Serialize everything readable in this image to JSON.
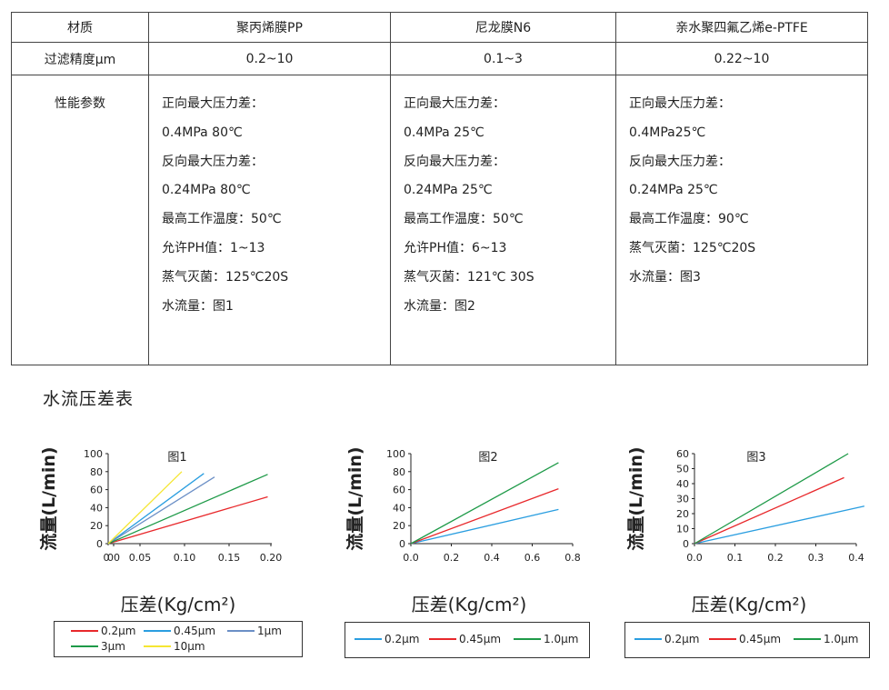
{
  "table": {
    "header": [
      "材质",
      "聚丙烯膜PP",
      "尼龙膜N6",
      "亲水聚四氟乙烯e-PTFE"
    ],
    "precision": [
      "过滤精度µm",
      "0.2~10",
      "0.1~3",
      "0.22~10"
    ],
    "perf_label": "性能参数",
    "perf": [
      [
        "正向最大压力差：",
        "0.4MPa 80℃",
        "反向最大压力差：",
        "0.24MPa 80℃",
        "最高工作温度：50℃",
        "允许PH值：1~13",
        "蒸气灭菌：125℃20S",
        "水流量：图1"
      ],
      [
        "正向最大压力差：",
        "0.4MPa 25℃",
        "反向最大压力差：",
        "0.24MPa 25℃",
        "最高工作温度：50℃",
        "允许PH值：6~13",
        "蒸气灭菌：121℃ 30S",
        "水流量：图2"
      ],
      [
        "正向最大压力差：",
        "0.4MPa25℃",
        "反向最大压力差：",
        "0.24MPa 25℃",
        "最高工作温度：90℃",
        "蒸气灭菌：125℃20S",
        "水流量：图3"
      ]
    ]
  },
  "section_title": "水流压差表",
  "chart_data": [
    {
      "type": "line",
      "title": "图1",
      "xlabel": "压差(Kg/cm²)",
      "ylabel": "流量(L/min)",
      "xlim": [
        0,
        0.2
      ],
      "ylim": [
        0,
        100
      ],
      "xticks": [
        "0",
        "00",
        "0.05",
        "0.10",
        "0.15",
        "0.20"
      ],
      "yticks": [
        "100",
        "80",
        "60",
        "40",
        "20",
        "0"
      ],
      "series": [
        {
          "name": "0.2µm",
          "color": "#e8282b",
          "points": [
            [
              0,
              0
            ],
            [
              0.195,
              52
            ]
          ]
        },
        {
          "name": "0.45µm",
          "color": "#2a9ee0",
          "points": [
            [
              0,
              0
            ],
            [
              0.117,
              78
            ]
          ]
        },
        {
          "name": "1µm",
          "color": "#6b8fc6",
          "points": [
            [
              0,
              0
            ],
            [
              0.13,
              74
            ]
          ]
        },
        {
          "name": "3µm",
          "color": "#1e9a48",
          "points": [
            [
              0,
              0
            ],
            [
              0.195,
              77
            ]
          ]
        },
        {
          "name": "10µm",
          "color": "#f5e632",
          "points": [
            [
              0,
              0
            ],
            [
              0.09,
              80
            ]
          ]
        }
      ]
    },
    {
      "type": "line",
      "title": "图2",
      "xlabel": "压差(Kg/cm²)",
      "ylabel": "流量(L/min)",
      "xlim": [
        0,
        0.8
      ],
      "ylim": [
        0,
        100
      ],
      "xticks": [
        "0.0",
        "0.2",
        "0.4",
        "0.6",
        "0.8"
      ],
      "yticks": [
        "100",
        "80",
        "60",
        "40",
        "20",
        "0"
      ],
      "series": [
        {
          "name": "0.2µm",
          "color": "#2a9ee0",
          "points": [
            [
              0,
              0
            ],
            [
              0.73,
              38
            ]
          ]
        },
        {
          "name": "0.45µm",
          "color": "#e8282b",
          "points": [
            [
              0,
              0
            ],
            [
              0.73,
              61
            ]
          ]
        },
        {
          "name": "1.0µm",
          "color": "#1e9a48",
          "points": [
            [
              0,
              0
            ],
            [
              0.73,
              90
            ]
          ]
        }
      ]
    },
    {
      "type": "line",
      "title": "图3",
      "xlabel": "压差(Kg/cm²)",
      "ylabel": "流量(L/min)",
      "xlim": [
        0,
        0.4
      ],
      "ylim": [
        0,
        60
      ],
      "xticks": [
        "0.0",
        "0.1",
        "0.2",
        "0.3",
        "0.4"
      ],
      "yticks": [
        "60",
        "50",
        "40",
        "30",
        "20",
        "10",
        "0"
      ],
      "series": [
        {
          "name": "0.2µm",
          "color": "#2a9ee0",
          "points": [
            [
              0,
              0
            ],
            [
              0.42,
              25
            ]
          ]
        },
        {
          "name": "0.45µm",
          "color": "#e8282b",
          "points": [
            [
              0,
              0
            ],
            [
              0.37,
              44
            ]
          ]
        },
        {
          "name": "1.0µm",
          "color": "#1e9a48",
          "points": [
            [
              0,
              0
            ],
            [
              0.38,
              60
            ]
          ]
        }
      ]
    }
  ]
}
